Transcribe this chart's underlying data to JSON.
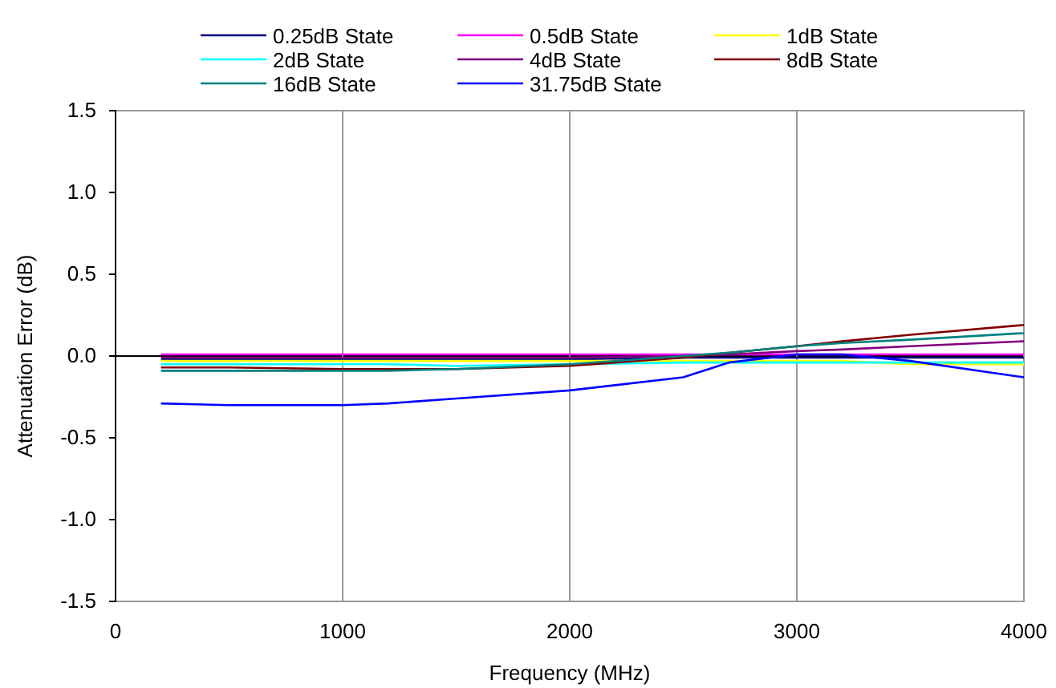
{
  "chart_data": {
    "type": "line",
    "xlabel": "Frequency (MHz)",
    "ylabel": "Attenuation Error (dB)",
    "x": [
      200,
      500,
      1000,
      1200,
      1500,
      2000,
      2500,
      2700,
      3000,
      3200,
      3500,
      4000
    ],
    "series": [
      {
        "name": "0.25dB State",
        "color": "#000080",
        "values": [
          -0.02,
          -0.02,
          -0.02,
          -0.02,
          -0.02,
          -0.02,
          -0.01,
          -0.01,
          -0.01,
          -0.01,
          -0.01,
          -0.01
        ]
      },
      {
        "name": "0.5dB State",
        "color": "#ff00ff",
        "values": [
          0.01,
          0.01,
          0.01,
          0.01,
          0.01,
          0.01,
          0.01,
          0.01,
          0.01,
          0.01,
          0.01,
          0.01
        ]
      },
      {
        "name": "1dB State",
        "color": "#ffff00",
        "values": [
          -0.03,
          -0.03,
          -0.03,
          -0.03,
          -0.03,
          -0.03,
          -0.03,
          -0.03,
          -0.03,
          -0.03,
          -0.05,
          -0.05
        ]
      },
      {
        "name": "2dB State",
        "color": "#00ffff",
        "values": [
          -0.05,
          -0.05,
          -0.05,
          -0.05,
          -0.06,
          -0.05,
          -0.04,
          -0.04,
          -0.04,
          -0.04,
          -0.04,
          -0.04
        ]
      },
      {
        "name": "4dB State",
        "color": "#800080",
        "values": [
          -0.01,
          -0.01,
          -0.01,
          -0.01,
          -0.01,
          -0.01,
          0.0,
          0.01,
          0.03,
          0.04,
          0.06,
          0.09
        ]
      },
      {
        "name": "8dB State",
        "color": "#800000",
        "values": [
          -0.07,
          -0.07,
          -0.08,
          -0.08,
          -0.08,
          -0.06,
          -0.01,
          0.02,
          0.06,
          0.09,
          0.13,
          0.19
        ]
      },
      {
        "name": "16dB State",
        "color": "#008080",
        "values": [
          -0.09,
          -0.09,
          -0.09,
          -0.09,
          -0.08,
          -0.05,
          0.0,
          0.02,
          0.06,
          0.08,
          0.1,
          0.14
        ]
      },
      {
        "name": "31.75dB State",
        "color": "#0000ff",
        "values": [
          -0.29,
          -0.3,
          -0.3,
          -0.29,
          -0.26,
          -0.21,
          -0.13,
          -0.04,
          0.01,
          0.01,
          -0.03,
          -0.13
        ]
      }
    ],
    "xlim": [
      0,
      4000
    ],
    "xticks": [
      0,
      1000,
      2000,
      3000,
      4000
    ],
    "ylim": [
      -1.5,
      1.5
    ],
    "yticks": [
      {
        "value": -1.5,
        "label": "-1.5"
      },
      {
        "value": -1.0,
        "label": "-1.0"
      },
      {
        "value": -0.5,
        "label": "-0.5"
      },
      {
        "value": 0,
        "label": "0.0"
      },
      {
        "value": 0.5,
        "label": "0.5"
      },
      {
        "value": 1.0,
        "label": "1.0"
      },
      {
        "value": 1.5,
        "label": "1.5"
      }
    ],
    "grid": "x",
    "legend": "top",
    "marker": "none",
    "line_style": "solid"
  }
}
